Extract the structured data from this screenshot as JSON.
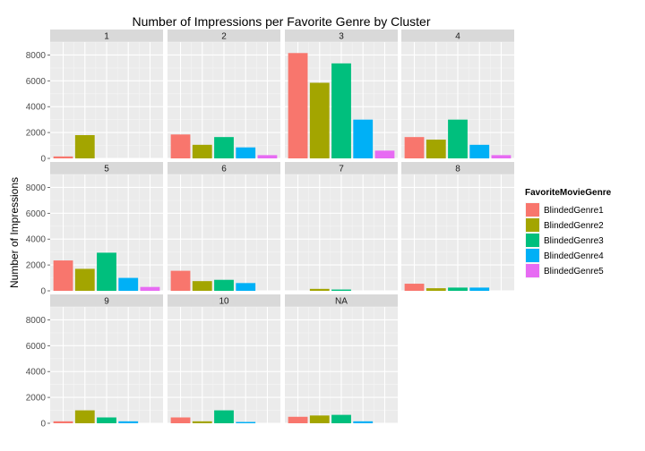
{
  "chart_data": {
    "type": "bar",
    "title": "Number of Impressions per Favorite Genre by Cluster",
    "xlabel": "",
    "ylabel": "Number of Impressions",
    "ylim": [
      0,
      9000
    ],
    "yticks": [
      0,
      2000,
      4000,
      6000,
      8000
    ],
    "ytick_labels": [
      "0",
      "2000",
      "4000",
      "6000",
      "8000"
    ],
    "categories": [
      "BlindedGenre1",
      "BlindedGenre2",
      "BlindedGenre3",
      "BlindedGenre4",
      "BlindedGenre5"
    ],
    "colors": [
      "#F8766D",
      "#A3A500",
      "#00BF7D",
      "#00B0F6",
      "#E76BF3"
    ],
    "grid": true,
    "legend": {
      "title": "FavoriteMovieGenre",
      "placement": "right",
      "items": [
        "BlindedGenre1",
        "BlindedGenre2",
        "BlindedGenre3",
        "BlindedGenre4",
        "BlindedGenre5"
      ]
    },
    "facets": [
      {
        "label": "1",
        "values": [
          150,
          1800,
          null,
          null,
          null
        ]
      },
      {
        "label": "2",
        "values": [
          1850,
          1050,
          1650,
          850,
          250
        ]
      },
      {
        "label": "3",
        "values": [
          8150,
          5850,
          7350,
          3000,
          600
        ]
      },
      {
        "label": "4",
        "values": [
          1650,
          1450,
          3000,
          1050,
          250
        ]
      },
      {
        "label": "5",
        "values": [
          2350,
          1700,
          2950,
          1000,
          300
        ]
      },
      {
        "label": "6",
        "values": [
          1550,
          750,
          850,
          600,
          null
        ]
      },
      {
        "label": "7",
        "values": [
          null,
          150,
          100,
          null,
          null
        ]
      },
      {
        "label": "8",
        "values": [
          550,
          200,
          250,
          250,
          null
        ]
      },
      {
        "label": "9",
        "values": [
          150,
          1000,
          450,
          150,
          null
        ]
      },
      {
        "label": "10",
        "values": [
          450,
          150,
          1000,
          100,
          null
        ]
      },
      {
        "label": "NA",
        "values": [
          500,
          600,
          650,
          150,
          null
        ]
      }
    ]
  }
}
